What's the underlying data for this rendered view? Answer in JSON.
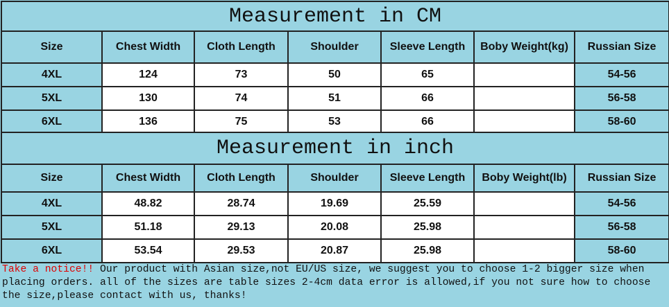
{
  "tables": [
    {
      "title": "Measurement in CM",
      "header": [
        "Size",
        "Chest Width",
        "Cloth Length",
        "Shoulder",
        "Sleeve Length",
        "Boby Weight(kg)",
        "Russian Size"
      ],
      "rows": [
        [
          "4XL",
          "124",
          "73",
          "50",
          "65",
          null,
          "54-56"
        ],
        [
          "5XL",
          "130",
          "74",
          "51",
          "66",
          null,
          "56-58"
        ],
        [
          "6XL",
          "136",
          "75",
          "53",
          "66",
          null,
          "58-60"
        ]
      ]
    },
    {
      "title": "Measurement in inch",
      "header": [
        "Size",
        "Chest Width",
        "Cloth Length",
        "Shoulder",
        "Sleeve Length",
        "Boby Weight(lb)",
        "Russian Size"
      ],
      "rows": [
        [
          "4XL",
          "48.82",
          "28.74",
          "19.69",
          "25.59",
          null,
          "54-56"
        ],
        [
          "5XL",
          "51.18",
          "29.13",
          "20.08",
          "25.98",
          null,
          "56-58"
        ],
        [
          "6XL",
          "53.54",
          "29.53",
          "20.87",
          "25.98",
          null,
          "58-60"
        ]
      ]
    }
  ],
  "notice": {
    "lead": "Take a notice!!",
    "text": " Our product with Asian size,not EU/US size, we suggest you to choose 1-2 bigger size when placing orders. all of the sizes are table sizes 2-4cm data error is allowed,if you not sure how to choose the size,please contact with us, thanks!"
  }
}
